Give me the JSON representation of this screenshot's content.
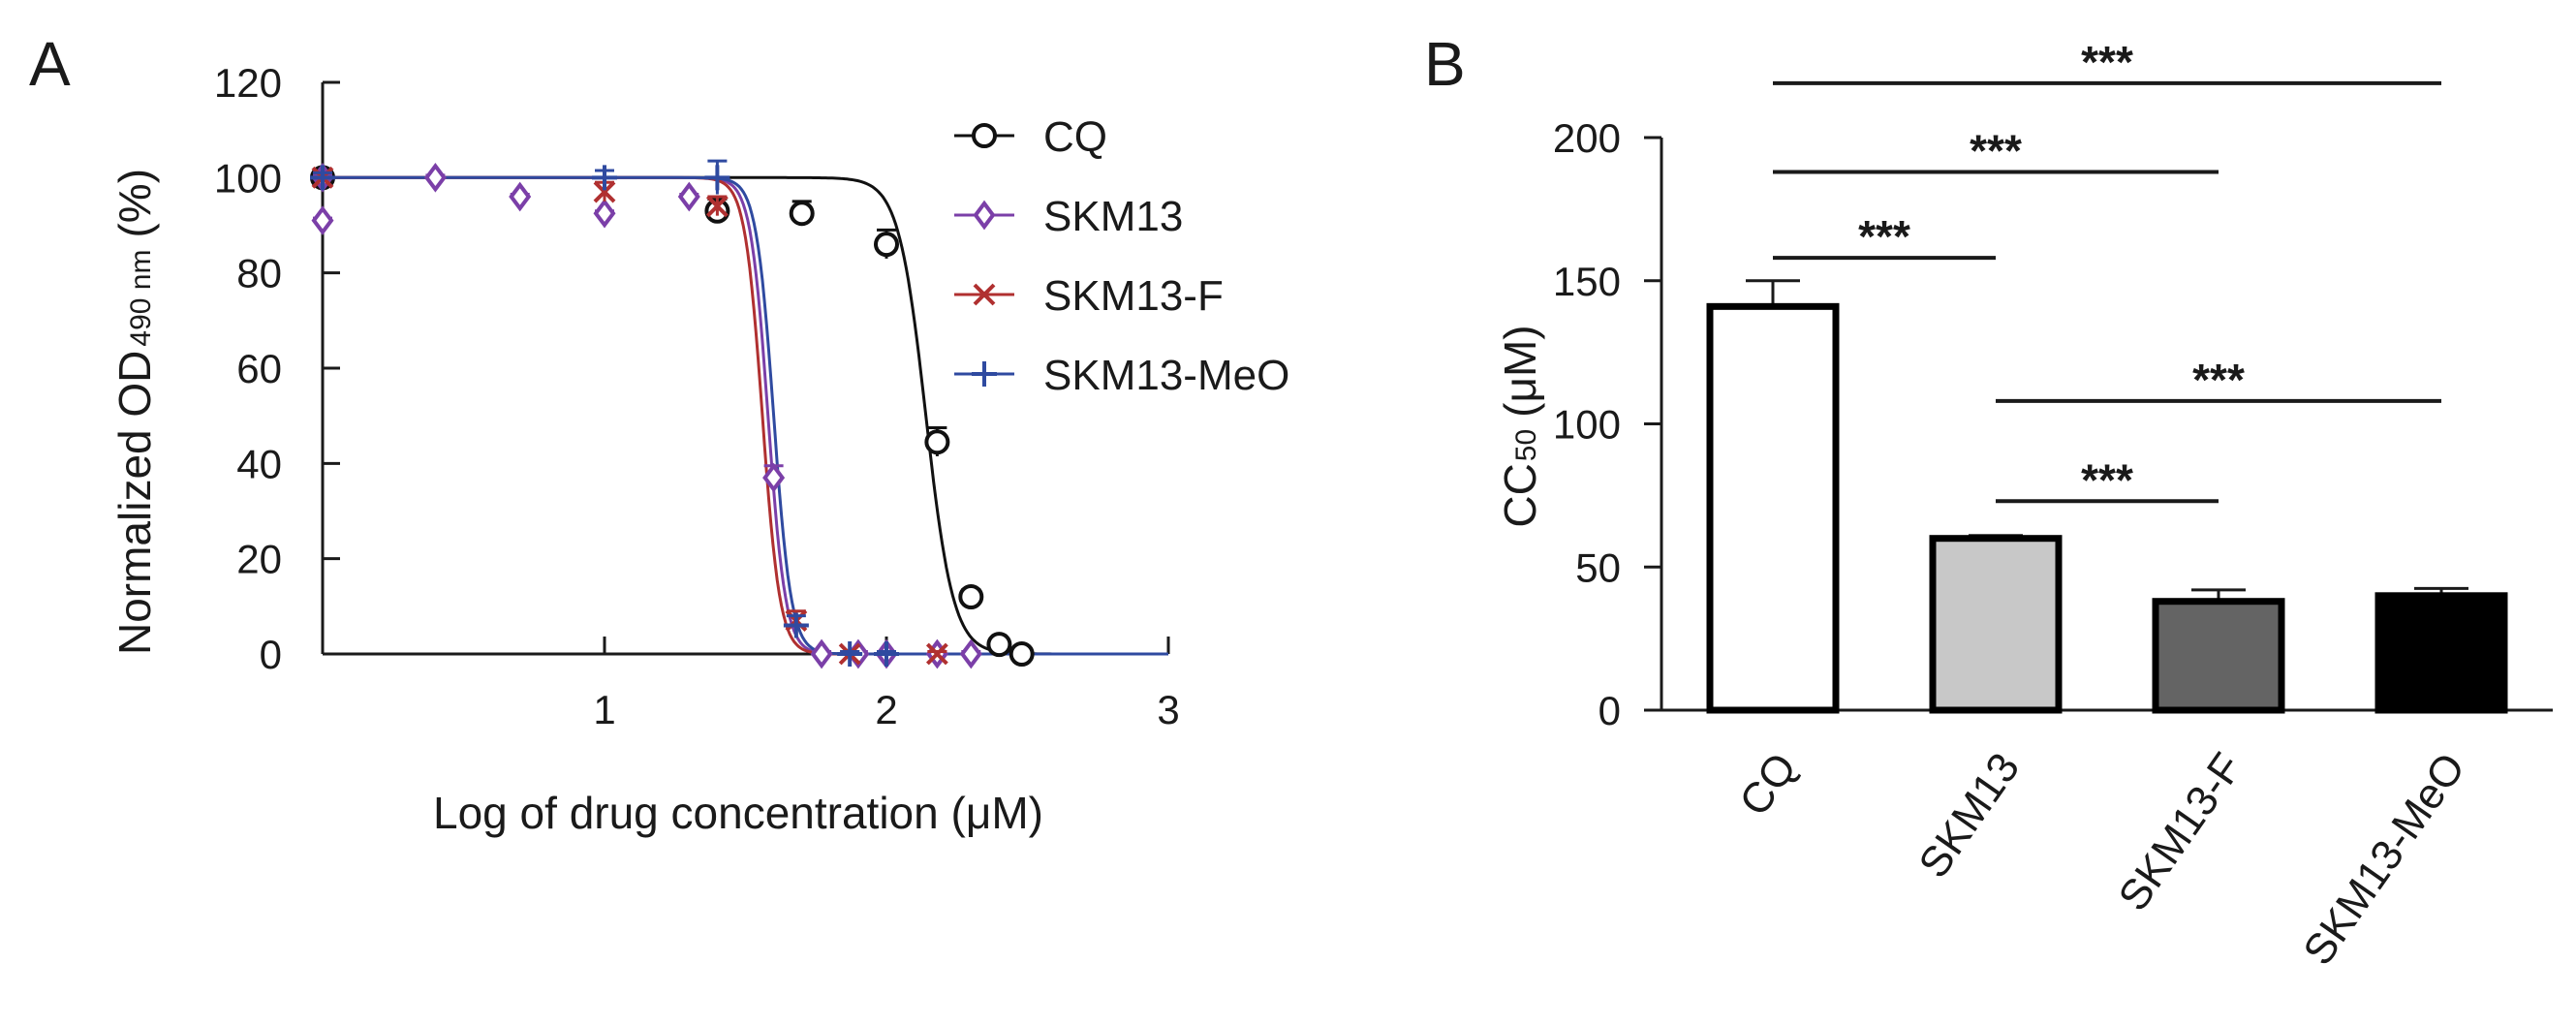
{
  "chart_data": [
    {
      "panel_label": "A",
      "type": "scatter",
      "xlabel": "Log of drug concentration (μM)",
      "ylabel_main": "Normalized OD",
      "ylabel_sub": "490 nm",
      "ylabel_unit": "(%)",
      "xlim": [
        0,
        3
      ],
      "ylim": [
        0,
        120
      ],
      "x_ticks": [
        1,
        2,
        3
      ],
      "x_tick_labels": [
        "1",
        "2",
        "3"
      ],
      "y_ticks": [
        0,
        20,
        40,
        60,
        80,
        100,
        120
      ],
      "y_tick_labels": [
        "0",
        "20",
        "40",
        "60",
        "80",
        "100",
        "120"
      ],
      "legend_position": "top-right",
      "series": [
        {
          "name": "CQ",
          "color": "#111111",
          "marker": "circle",
          "fit": {
            "top": 100,
            "bottom": 0,
            "ic50_log": 2.14,
            "hill": 9
          },
          "points": [
            {
              "x": 0.0,
              "y": 100,
              "err": 1.5
            },
            {
              "x": 1.4,
              "y": 93,
              "err": 2.5
            },
            {
              "x": 1.7,
              "y": 92.5,
              "err": 2.5
            },
            {
              "x": 2.0,
              "y": 86,
              "err": 3
            },
            {
              "x": 2.18,
              "y": 44.5,
              "err": 3
            },
            {
              "x": 2.3,
              "y": 12,
              "err": 1.5
            },
            {
              "x": 2.4,
              "y": 2,
              "err": 1
            },
            {
              "x": 2.48,
              "y": 0,
              "err": 0.5
            }
          ]
        },
        {
          "name": "SKM13",
          "color": "#7b3fa8",
          "marker": "diamond",
          "fit": {
            "top": 100,
            "bottom": 0,
            "ic50_log": 1.58,
            "hill": 14
          },
          "points": [
            {
              "x": 0.0,
              "y": 91,
              "err": 0.5
            },
            {
              "x": 0.0,
              "y": 100,
              "err": 0.5
            },
            {
              "x": 0.4,
              "y": 100,
              "err": 0.5
            },
            {
              "x": 0.7,
              "y": 96,
              "err": 0.5
            },
            {
              "x": 1.0,
              "y": 92.5,
              "err": 0.5
            },
            {
              "x": 1.3,
              "y": 96,
              "err": 0.5
            },
            {
              "x": 1.6,
              "y": 37,
              "err": 2.5
            },
            {
              "x": 1.77,
              "y": 0,
              "err": 0.5
            },
            {
              "x": 1.9,
              "y": 0,
              "err": 0.5
            },
            {
              "x": 2.0,
              "y": 0,
              "err": 0.5
            },
            {
              "x": 2.18,
              "y": 0,
              "err": 0.5
            },
            {
              "x": 2.3,
              "y": 0,
              "err": 0.5
            }
          ]
        },
        {
          "name": "SKM13-F",
          "color": "#b03030",
          "marker": "x",
          "fit": {
            "top": 100,
            "bottom": 0,
            "ic50_log": 1.56,
            "hill": 14
          },
          "points": [
            {
              "x": 0.0,
              "y": 100,
              "err": 1
            },
            {
              "x": 1.0,
              "y": 97,
              "err": 2
            },
            {
              "x": 1.4,
              "y": 94,
              "err": 2
            },
            {
              "x": 1.68,
              "y": 7,
              "err": 2
            },
            {
              "x": 1.87,
              "y": 0,
              "err": 0.5
            },
            {
              "x": 2.18,
              "y": 0,
              "err": 0.5
            }
          ]
        },
        {
          "name": "SKM13-MeO",
          "color": "#2f4aa0",
          "marker": "plus",
          "fit": {
            "top": 100,
            "bottom": 0,
            "ic50_log": 1.6,
            "hill": 14
          },
          "points": [
            {
              "x": 0.0,
              "y": 100,
              "err": 1
            },
            {
              "x": 1.0,
              "y": 100,
              "err": 1.5
            },
            {
              "x": 1.4,
              "y": 100,
              "err": 3.5
            },
            {
              "x": 1.68,
              "y": 6,
              "err": 2
            },
            {
              "x": 1.87,
              "y": 0,
              "err": 0.5
            },
            {
              "x": 2.0,
              "y": 0,
              "err": 0.5
            }
          ]
        }
      ]
    },
    {
      "panel_label": "B",
      "type": "bar",
      "ylabel_main": "CC",
      "ylabel_sub": "50",
      "ylabel_unit": "(μM)",
      "ylim": [
        0,
        200
      ],
      "y_ticks": [
        0,
        50,
        100,
        150,
        200
      ],
      "y_tick_labels": [
        "0",
        "50",
        "100",
        "150",
        "200"
      ],
      "categories": [
        "CQ",
        "SKM13",
        "SKM13-F",
        "SKM13-MeO"
      ],
      "values": [
        141,
        60,
        38,
        40
      ],
      "errors": [
        9,
        1,
        4,
        2.5
      ],
      "bar_colors": [
        "#ffffff",
        "#c8c8c8",
        "#646464",
        "#000000"
      ],
      "significance": [
        {
          "from": 0,
          "to": 3,
          "label": "***",
          "level": 219
        },
        {
          "from": 0,
          "to": 2,
          "label": "***",
          "level": 188
        },
        {
          "from": 0,
          "to": 1,
          "label": "***",
          "level": 158
        },
        {
          "from": 1,
          "to": 3,
          "label": "***",
          "level": 108
        },
        {
          "from": 1,
          "to": 2,
          "label": "***",
          "level": 73
        }
      ]
    }
  ]
}
